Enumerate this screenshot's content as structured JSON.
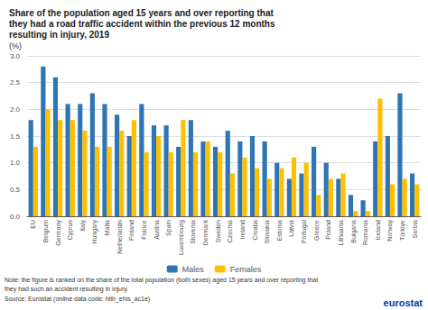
{
  "chart_data": {
    "type": "bar",
    "title": "Share of the population aged 15 years and over reporting that\nthey had a road traffic accident within the previous 12 months\nresulting in injury, 2019",
    "subtitle": "(%)",
    "categories": [
      "EU",
      "Belgium",
      "Germany",
      "Cyprus",
      "Italy",
      "Hungary",
      "Malta",
      "Netherlands",
      "Finland",
      "France",
      "Austria",
      "Spain",
      "Luxembourg",
      "Slovenia",
      "Denmark",
      "Sweden",
      "Czechia",
      "Ireland",
      "Croatia",
      "Slovakia",
      "Estonia",
      "Latvia",
      "Portugal",
      "Greece",
      "Poland",
      "Lithuania",
      "Bulgaria",
      "Romania",
      "Iceland",
      "Norway",
      "Türkiye",
      "Serbia"
    ],
    "series": [
      {
        "name": "Males",
        "color": "#2E75B6",
        "values": [
          1.8,
          2.8,
          2.6,
          2.1,
          2.1,
          2.3,
          2.1,
          1.9,
          1.5,
          2.1,
          1.7,
          1.7,
          1.3,
          1.8,
          1.4,
          1.3,
          1.6,
          1.4,
          1.5,
          1.4,
          1.0,
          0.7,
          0.8,
          1.3,
          1.0,
          0.7,
          0.4,
          0.3,
          1.4,
          1.5,
          2.3,
          0.8
        ]
      },
      {
        "name": "Females",
        "color": "#FFC000",
        "values": [
          1.3,
          2.0,
          1.8,
          1.8,
          1.6,
          1.3,
          1.3,
          1.6,
          1.8,
          1.2,
          1.5,
          1.2,
          1.8,
          1.2,
          1.4,
          1.2,
          0.8,
          1.1,
          0.9,
          0.7,
          0.9,
          1.1,
          1.0,
          0.4,
          0.7,
          0.8,
          0.1,
          0.1,
          2.2,
          0.6,
          0.7,
          0.6
        ]
      }
    ],
    "ylim": [
      0,
      3.0
    ],
    "yticks": [
      {
        "value": 0,
        "label": "0.0"
      },
      0.5,
      {
        "value": 1,
        "label": "1.0"
      },
      1.5,
      {
        "value": 2,
        "label": "2.0"
      },
      2.5,
      {
        "value": 3,
        "label": "3.0"
      }
    ],
    "grid": true,
    "legend": "bottom",
    "annotations": [
      {
        "text": "Note: the figure is ranked on the share of the total population (both sexes) aged 15 years and over reporting that"
      },
      {
        "text": "they had such an accident resulting in injury."
      },
      {
        "text": "Source: Eurostat (online data code: hlth_ehis_ac1e)"
      },
      {
        "text": "eurostat",
        "color": "#003DA5"
      }
    ]
  }
}
